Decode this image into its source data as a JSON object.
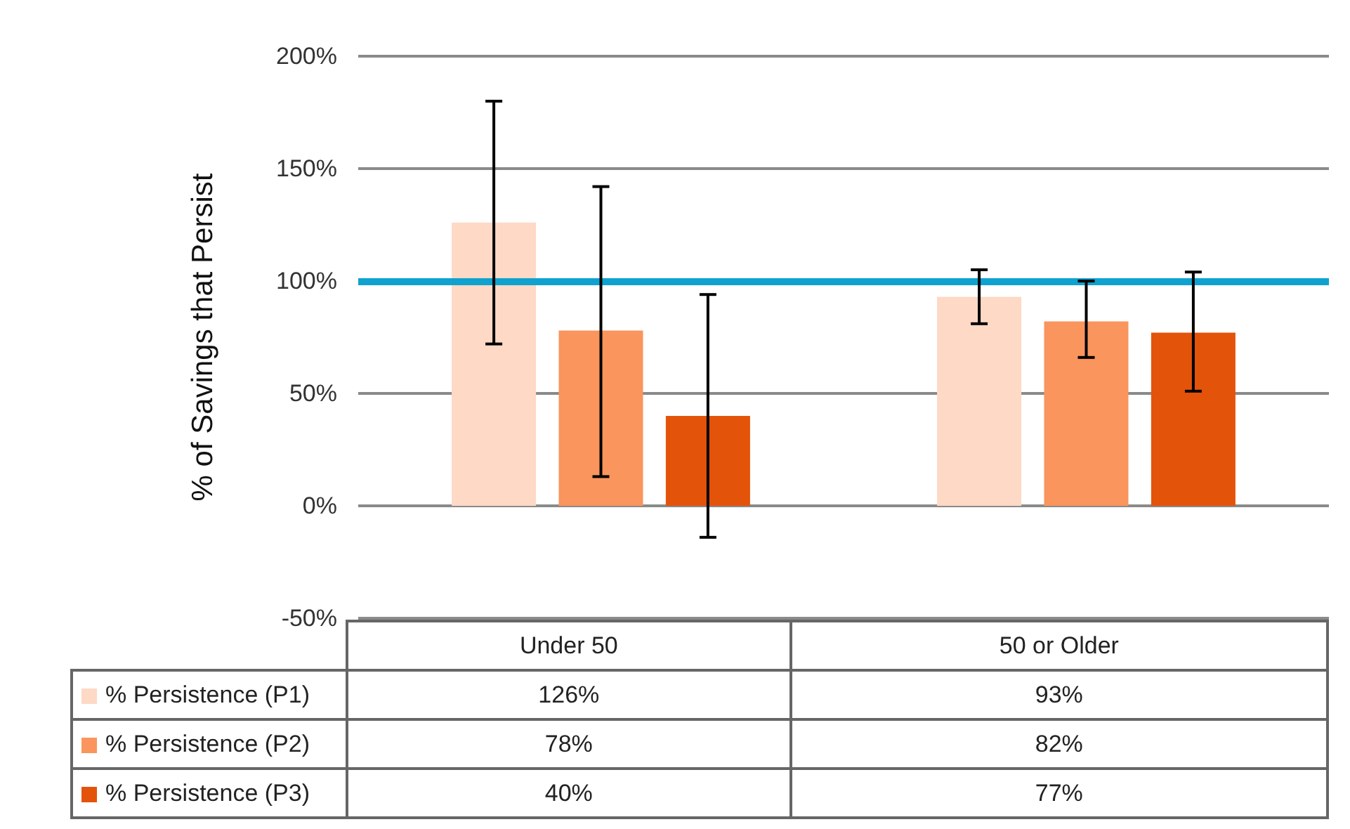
{
  "chart_data": {
    "type": "bar",
    "ylabel": "% of Savings that Persist",
    "categories": [
      "Under 50",
      "50 or Older"
    ],
    "series": [
      {
        "name": "% Persistence (P1)",
        "color": "#fdd9c6",
        "values": [
          126,
          93
        ],
        "value_labels": [
          "126%",
          "93%"
        ],
        "errors": [
          [
            72,
            180
          ],
          [
            81,
            105
          ]
        ]
      },
      {
        "name": "% Persistence (P2)",
        "color": "#f9955d",
        "values": [
          78,
          82
        ],
        "value_labels": [
          "78%",
          "82%"
        ],
        "errors": [
          [
            13,
            142
          ],
          [
            66,
            100
          ]
        ]
      },
      {
        "name": "% Persistence (P3)",
        "color": "#e4530a",
        "values": [
          40,
          77
        ],
        "value_labels": [
          "40%",
          "77%"
        ],
        "errors": [
          [
            -14,
            94
          ],
          [
            51,
            104
          ]
        ]
      }
    ],
    "ylim": [
      -50,
      200
    ],
    "yticks": [
      {
        "value": -50,
        "label": "-50%"
      },
      {
        "value": 0,
        "label": "0%"
      },
      {
        "value": 50,
        "label": "50%"
      },
      {
        "value": 100,
        "label": "100%"
      },
      {
        "value": 150,
        "label": "150%"
      },
      {
        "value": 200,
        "label": "200%"
      }
    ],
    "ref_lines": [
      {
        "axis": "y",
        "value": 100,
        "color": "#10a2cf"
      }
    ],
    "grid": "y",
    "legend": "bottom"
  }
}
